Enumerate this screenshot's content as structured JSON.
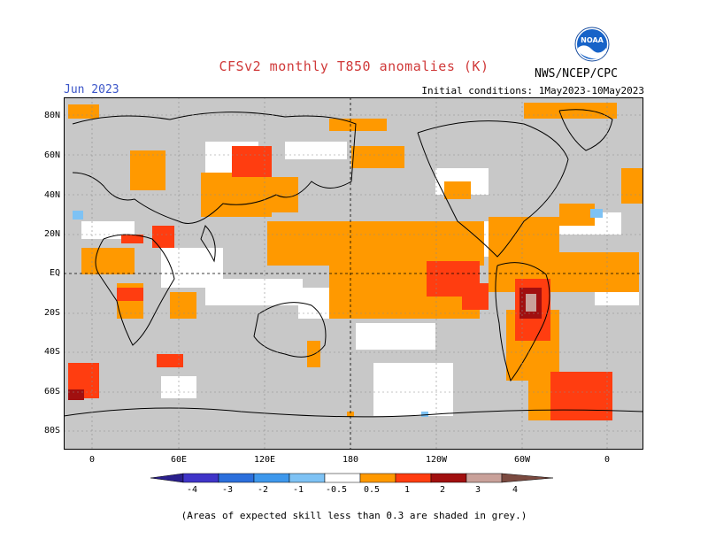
{
  "header": {
    "title": "CFSv2 monthly T850 anomalies (K)",
    "month": "Jun 2023",
    "agency": "NWS/NCEP/CPC",
    "initial_conditions": "Initial conditions: 1May2023-10May2023",
    "logo_text": "NOAA"
  },
  "axes": {
    "lat_labels": [
      "80N",
      "60N",
      "40N",
      "20N",
      "EQ",
      "20S",
      "40S",
      "60S",
      "80S"
    ],
    "lon_labels": [
      "0",
      "60E",
      "120E",
      "180",
      "120W",
      "60W",
      "0"
    ]
  },
  "colorbar": {
    "labels": [
      "-4",
      "-3",
      "-2",
      "-1",
      "-0.5",
      "0.5",
      "1",
      "2",
      "3",
      "4"
    ],
    "colors": {
      "lt_-4": "#2a1f8c",
      "-4_-3": "#3f34c8",
      "-3_-2": "#2b6fdc",
      "-2_-1": "#3e98ec",
      "-1_-0.5": "#7ec2f4",
      "-0.5_0.5": "#ffffff",
      "0.5_1": "#ff9900",
      "1_2": "#ff3d10",
      "2_3": "#a10f0f",
      "3_4": "#c9a19a",
      "gt_4": "#7b4a40"
    }
  },
  "legend_colors": {
    "low_skill": "#c8c8c8",
    "coast": "#000000",
    "grid": "#8c8c8c"
  },
  "footnote": "(Areas of expected skill less than 0.3 are shaded in grey.)"
}
